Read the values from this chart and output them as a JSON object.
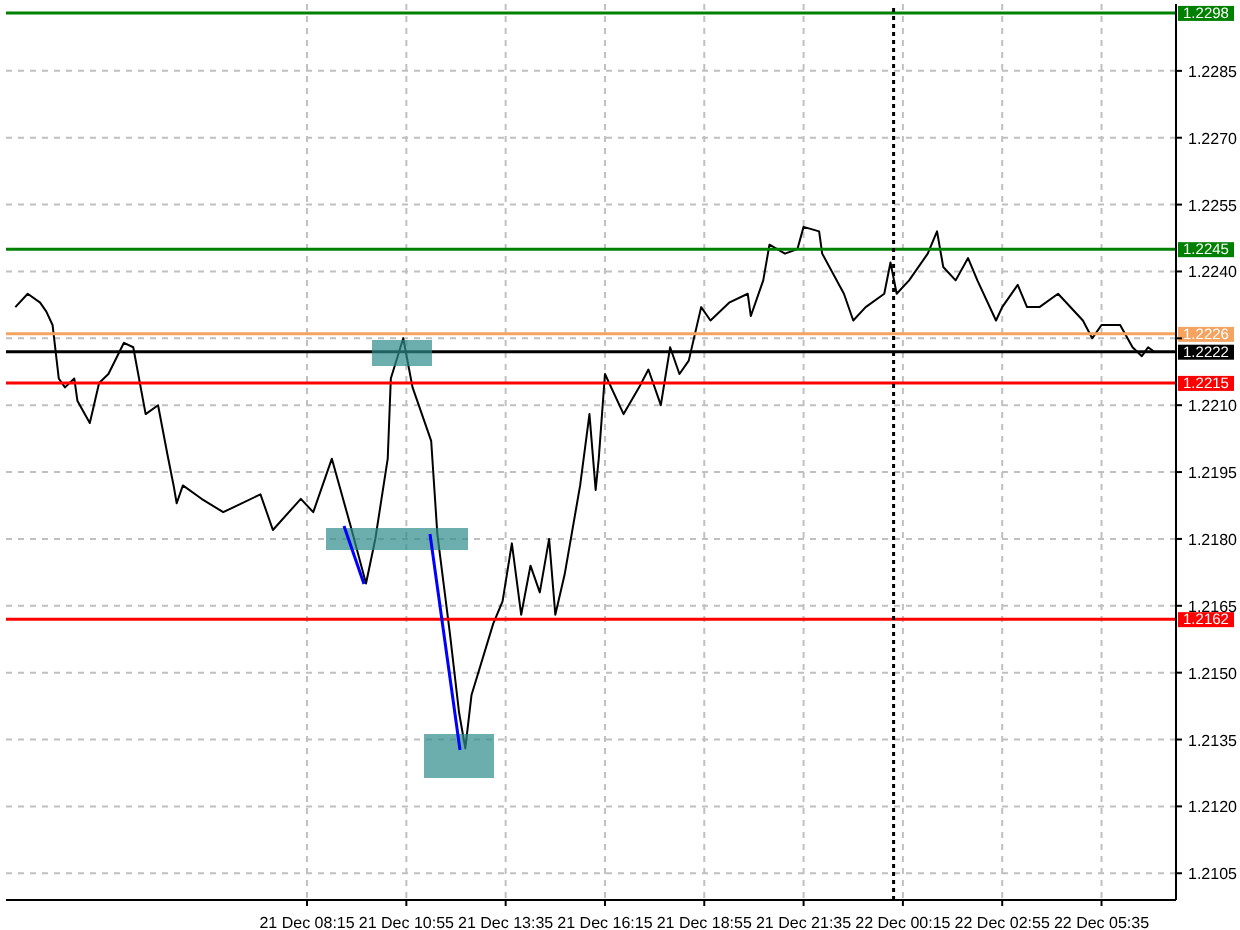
{
  "chart_data": {
    "type": "line",
    "color": "#000000",
    "marker": "none",
    "grid": true,
    "x": [
      "--12-21T00:25",
      "--12-21T00:45",
      "--12-21T01:05",
      "--12-21T01:15",
      "--12-21T01:25",
      "--12-21T01:35",
      "--12-21T01:45",
      "--12-21T02:00",
      "--12-21T02:05",
      "--12-21T02:25",
      "--12-21T02:40",
      "--12-21T02:55",
      "--12-21T03:20",
      "--12-21T03:35",
      "--12-21T03:55",
      "--12-21T04:15",
      "--12-21T04:30",
      "--12-21T04:40",
      "--12-21T04:45",
      "--12-21T04:55",
      "--12-21T05:25",
      "--12-21T06:00",
      "--12-21T07:00",
      "--12-21T07:20",
      "--12-21T08:05",
      "--12-21T08:25",
      "--12-21T08:55",
      "--12-21T09:25",
      "--12-21T09:50",
      "--12-21T10:05",
      "--12-21T10:25",
      "--12-21T10:30",
      "--12-21T10:50",
      "--12-21T11:05",
      "--12-21T11:15",
      "--12-21T11:35",
      "--12-21T11:45",
      "--12-21T12:05",
      "--12-21T12:20",
      "--12-21T12:30",
      "--12-21T12:40",
      "--12-21T13:15",
      "--12-21T13:30",
      "--12-21T13:45",
      "--12-21T14:00",
      "--12-21T14:15",
      "--12-21T14:30",
      "--12-21T14:45",
      "--12-21T14:55",
      "--12-21T15:10",
      "--12-21T15:35",
      "--12-21T15:50",
      "--12-21T16:00",
      "--12-21T16:05",
      "--12-21T16:15",
      "--12-21T16:45",
      "--12-21T17:10",
      "--12-21T17:25",
      "--12-21T17:45",
      "--12-21T18:00",
      "--12-21T18:15",
      "--12-21T18:30",
      "--12-21T18:50",
      "--12-21T19:05",
      "--12-21T19:35",
      "--12-21T20:05",
      "--12-21T20:10",
      "--12-21T20:30",
      "--12-21T20:40",
      "--12-21T21:05",
      "--12-21T21:25",
      "--12-21T21:35",
      "--12-21T22:00",
      "--12-21T22:05",
      "--12-21T22:40",
      "--12-21T22:55",
      "--12-21T23:15",
      "--12-21T23:45",
      "--12-21T23:55",
      "--12-22T00:05",
      "--12-22T00:25",
      "--12-22T00:55",
      "--12-22T01:10",
      "--12-22T01:20",
      "--12-22T01:40",
      "--12-22T02:00",
      "--12-22T02:15",
      "--12-22T02:45",
      "--12-22T02:55",
      "--12-22T03:20",
      "--12-22T03:35",
      "--12-22T03:55",
      "--12-22T04:25",
      "--12-22T05:05",
      "--12-22T05:20",
      "--12-22T05:35",
      "--12-22T06:05",
      "--12-22T06:25",
      "--12-22T06:40",
      "--12-22T06:50",
      "--12-22T07:00"
    ],
    "values": [
      1.2232,
      1.2235,
      1.2233,
      1.2231,
      1.2228,
      1.2216,
      1.2214,
      1.2216,
      1.2211,
      1.2206,
      1.2215,
      1.2217,
      1.2224,
      1.2223,
      1.2208,
      1.221,
      1.2199,
      1.2192,
      1.2188,
      1.2192,
      1.2189,
      1.2186,
      1.219,
      1.2182,
      1.2189,
      1.2186,
      1.2198,
      1.2183,
      1.217,
      1.218,
      1.2198,
      1.2216,
      1.2225,
      1.2214,
      1.221,
      1.2202,
      1.2181,
      1.2159,
      1.2141,
      1.2133,
      1.2145,
      1.2161,
      1.2166,
      1.2179,
      1.2163,
      1.2174,
      1.2168,
      1.218,
      1.2163,
      1.2172,
      1.2192,
      1.2208,
      1.2191,
      1.2198,
      1.2217,
      1.2208,
      1.2214,
      1.2218,
      1.221,
      1.2223,
      1.2217,
      1.222,
      1.2232,
      1.2229,
      1.2233,
      1.2235,
      1.223,
      1.2238,
      1.2246,
      1.2244,
      1.2245,
      1.225,
      1.2249,
      1.2244,
      1.2235,
      1.2229,
      1.2232,
      1.2235,
      1.2242,
      1.2235,
      1.2238,
      1.2244,
      1.2249,
      1.2241,
      1.2238,
      1.2243,
      1.2238,
      1.2229,
      1.2232,
      1.2237,
      1.2232,
      1.2232,
      1.2235,
      1.2229,
      1.2225,
      1.2228,
      1.2228,
      1.2223,
      1.2221,
      1.2223,
      1.2222
    ],
    "xlim": [
      "--12-21T00:10",
      "--12-22T07:35"
    ],
    "xticks": [
      {
        "value": "--12-21T08:15",
        "label": "21 Dec 08:15"
      },
      {
        "value": "--12-21T10:55",
        "label": "21 Dec 10:55"
      },
      {
        "value": "--12-21T13:35",
        "label": "21 Dec 13:35"
      },
      {
        "value": "--12-21T16:15",
        "label": "21 Dec 16:15"
      },
      {
        "value": "--12-21T18:55",
        "label": "21 Dec 18:55"
      },
      {
        "value": "--12-21T21:35",
        "label": "21 Dec 21:35"
      },
      {
        "value": "--12-22T00:15",
        "label": "22 Dec 00:15"
      },
      {
        "value": "--12-22T02:55",
        "label": "22 Dec 02:55"
      },
      {
        "value": "--12-22T05:35",
        "label": "22 Dec 05:35"
      }
    ],
    "ylim": [
      1.2099,
      1.23
    ],
    "yticks": [
      {
        "value": 1.2105,
        "label": "1.2105"
      },
      {
        "value": 1.212,
        "label": "1.2120"
      },
      {
        "value": 1.2135,
        "label": "1.2135"
      },
      {
        "value": 1.215,
        "label": "1.2150"
      },
      {
        "value": 1.2165,
        "label": "1.2165"
      },
      {
        "value": 1.218,
        "label": "1.2180"
      },
      {
        "value": 1.2195,
        "label": "1.2195"
      },
      {
        "value": 1.221,
        "label": "1.2210"
      },
      {
        "value": 1.2225,
        "label": null
      },
      {
        "value": 1.224,
        "label": "1.2240"
      },
      {
        "value": 1.2255,
        "label": "1.2255"
      },
      {
        "value": 1.227,
        "label": "1.2270"
      },
      {
        "value": 1.2285,
        "label": "1.2285"
      }
    ],
    "ref_lines": [
      {
        "axis": "y",
        "value": 1.2298,
        "label": "1.2298",
        "color": "#008000"
      },
      {
        "axis": "y",
        "value": 1.2245,
        "label": "1.2245",
        "color": "#008000"
      },
      {
        "axis": "y",
        "value": 1.2226,
        "label": "1.2226",
        "color": "#f4a460"
      },
      {
        "axis": "y",
        "value": 1.2222,
        "label": "1.2222",
        "color": "#000000"
      },
      {
        "axis": "y",
        "value": 1.2215,
        "label": "1.2215",
        "color": "#ff0000"
      },
      {
        "axis": "y",
        "value": 1.2162,
        "label": "1.2162",
        "color": "#ff0000"
      },
      {
        "axis": "x",
        "value": "--12-22T00:00",
        "color": "#000000",
        "line_style": "dotted"
      }
    ]
  }
}
